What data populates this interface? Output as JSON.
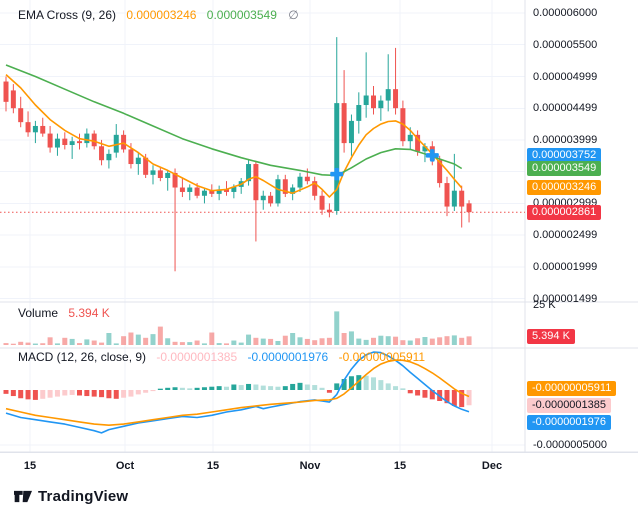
{
  "legend": {
    "ema": {
      "title": "EMA Cross (9, 26)",
      "ema9_value": "0.000003246",
      "ema26_value": "0.000003549",
      "icon": "∅"
    },
    "volume": {
      "title": "Volume",
      "value": "5.394 K"
    },
    "macd": {
      "title": "MACD (12, 26, close, 9)",
      "hist_value": "-0.0000001385",
      "macd_value": "-0.0000001976",
      "signal_value": "-0.00000005911"
    }
  },
  "watermark": {
    "brand": "TradingView"
  },
  "colors": {
    "up": "#26a69a",
    "down": "#ef5350",
    "ema_fast": "#ff9800",
    "ema_slow": "#4caf50",
    "macd_line": "#2196f3",
    "macd_signal": "#ff9800",
    "hist_pos": "#26a69a",
    "hist_pos_weak": "#b2dfdb",
    "hist_neg": "#ef5350",
    "hist_neg_weak": "#fccbcd",
    "badge_blue": "#2196f3",
    "badge_green": "#4caf50",
    "badge_orange": "#ff9800",
    "badge_red": "#f23645",
    "badge_pink": "#fccbcd",
    "grid": "#f0f3fa",
    "separator": "#e0e3eb",
    "text": "#131722",
    "muted": "#787b86",
    "dotted_price_line": "#ef5350",
    "marker_blue": "#2196f3"
  },
  "chart_data": [
    {
      "type": "candlestick",
      "pane": "price",
      "title": "EMA Cross (9, 26)",
      "unit": "1e-6",
      "x_ticks": [
        "15",
        "Oct",
        "15",
        "Nov",
        "15",
        "Dec"
      ],
      "y_ticks": [
        {
          "v": 6.0,
          "label": "0.000006000"
        },
        {
          "v": 5.5,
          "label": "0.000005500"
        },
        {
          "v": 4.999,
          "label": "0.000004999"
        },
        {
          "v": 4.499,
          "label": "0.000004499"
        },
        {
          "v": 3.999,
          "label": "0.000003999"
        },
        {
          "v": 2.999,
          "label": "0.000002999"
        },
        {
          "v": 2.499,
          "label": "0.000002499"
        },
        {
          "v": 1.999,
          "label": "0.000001999"
        },
        {
          "v": 1.499,
          "label": "0.000001499"
        }
      ],
      "axis_badges": [
        {
          "v": 3.752,
          "label": "0.000003752",
          "type": "blue"
        },
        {
          "v": 3.549,
          "label": "0.000003549",
          "type": "green"
        },
        {
          "v": 3.246,
          "label": "0.000003246",
          "type": "orange"
        },
        {
          "v": 2.861,
          "label": "0.000002861",
          "type": "red"
        }
      ],
      "last_price": 2.861,
      "last_price_label": "0.000002861",
      "ohlc": [
        [
          4.92,
          5.0,
          4.45,
          4.6
        ],
        [
          4.78,
          4.88,
          4.42,
          4.5
        ],
        [
          4.5,
          4.68,
          4.2,
          4.28
        ],
        [
          4.28,
          4.45,
          4.05,
          4.12
        ],
        [
          4.12,
          4.3,
          3.95,
          4.22
        ],
        [
          4.22,
          4.35,
          4.05,
          4.1
        ],
        [
          4.1,
          4.22,
          3.8,
          3.88
        ],
        [
          3.88,
          4.1,
          3.75,
          4.02
        ],
        [
          4.02,
          4.12,
          3.85,
          3.92
        ],
        [
          3.92,
          4.05,
          3.7,
          3.98
        ],
        [
          3.98,
          4.1,
          3.85,
          3.95
        ],
        [
          3.95,
          4.18,
          3.88,
          4.1
        ],
        [
          4.1,
          4.15,
          3.85,
          3.9
        ],
        [
          3.9,
          4.0,
          3.6,
          3.68
        ],
        [
          3.68,
          3.85,
          3.55,
          3.78
        ],
        [
          3.8,
          4.25,
          3.72,
          4.08
        ],
        [
          4.08,
          4.15,
          3.8,
          3.85
        ],
        [
          3.85,
          3.95,
          3.55,
          3.62
        ],
        [
          3.62,
          3.8,
          3.45,
          3.72
        ],
        [
          3.72,
          3.78,
          3.4,
          3.45
        ],
        [
          3.45,
          3.6,
          3.3,
          3.52
        ],
        [
          3.52,
          3.58,
          3.35,
          3.4
        ],
        [
          3.4,
          3.52,
          3.2,
          3.48
        ],
        [
          3.48,
          3.55,
          1.93,
          3.25
        ],
        [
          3.25,
          3.4,
          3.1,
          3.18
        ],
        [
          3.18,
          3.3,
          3.05,
          3.25
        ],
        [
          3.25,
          3.32,
          3.08,
          3.12
        ],
        [
          3.12,
          3.25,
          3.0,
          3.2
        ],
        [
          3.2,
          3.3,
          3.1,
          3.15
        ],
        [
          3.15,
          3.28,
          3.05,
          3.22
        ],
        [
          3.22,
          3.35,
          3.12,
          3.18
        ],
        [
          3.18,
          3.3,
          3.08,
          3.26
        ],
        [
          3.26,
          3.4,
          3.15,
          3.35
        ],
        [
          3.35,
          3.7,
          3.28,
          3.62
        ],
        [
          3.62,
          3.66,
          2.4,
          3.05
        ],
        [
          3.05,
          3.2,
          2.9,
          3.12
        ],
        [
          3.12,
          3.18,
          2.95,
          3.0
        ],
        [
          3.0,
          3.45,
          2.95,
          3.38
        ],
        [
          3.38,
          3.45,
          3.1,
          3.15
        ],
        [
          3.15,
          3.3,
          3.05,
          3.25
        ],
        [
          3.25,
          3.48,
          3.18,
          3.42
        ],
        [
          3.42,
          3.55,
          3.3,
          3.35
        ],
        [
          3.35,
          3.42,
          3.05,
          3.12
        ],
        [
          3.12,
          3.2,
          2.82,
          2.9
        ],
        [
          2.9,
          3.0,
          2.78,
          2.86
        ],
        [
          2.88,
          5.62,
          2.82,
          4.58
        ],
        [
          4.58,
          5.1,
          3.8,
          3.95
        ],
        [
          3.95,
          4.4,
          3.75,
          4.3
        ],
        [
          4.3,
          4.75,
          4.1,
          4.55
        ],
        [
          4.55,
          5.38,
          4.35,
          4.7
        ],
        [
          4.7,
          4.85,
          4.4,
          4.5
        ],
        [
          4.5,
          4.7,
          4.3,
          4.62
        ],
        [
          4.62,
          5.35,
          4.45,
          4.8
        ],
        [
          4.8,
          5.45,
          4.4,
          4.5
        ],
        [
          4.5,
          4.62,
          3.9,
          3.98
        ],
        [
          3.98,
          4.2,
          3.85,
          4.08
        ],
        [
          4.08,
          4.15,
          3.75,
          3.82
        ],
        [
          3.82,
          3.95,
          3.65,
          3.9
        ],
        [
          3.9,
          3.98,
          3.6,
          3.68
        ],
        [
          3.68,
          3.75,
          3.25,
          3.32
        ],
        [
          3.32,
          3.42,
          2.8,
          2.95
        ],
        [
          2.95,
          3.78,
          2.88,
          3.2
        ],
        [
          3.2,
          3.28,
          2.62,
          2.95
        ],
        [
          3.0,
          3.05,
          2.7,
          2.861
        ]
      ],
      "series": [
        {
          "name": "EMA 9",
          "color_key": "ema_fast",
          "points": [
            [
              0,
              5.03
            ],
            [
              2,
              4.82
            ],
            [
              4,
              4.55
            ],
            [
              6,
              4.32
            ],
            [
              8,
              4.15
            ],
            [
              10,
              4.02
            ],
            [
              12,
              3.98
            ],
            [
              14,
              3.9
            ],
            [
              16,
              3.95
            ],
            [
              18,
              3.8
            ],
            [
              20,
              3.62
            ],
            [
              22,
              3.52
            ],
            [
              24,
              3.4
            ],
            [
              26,
              3.28
            ],
            [
              28,
              3.2
            ],
            [
              30,
              3.22
            ],
            [
              32,
              3.3
            ],
            [
              33,
              3.38
            ],
            [
              34,
              3.42
            ],
            [
              35,
              3.36
            ],
            [
              37,
              3.22
            ],
            [
              39,
              3.16
            ],
            [
              41,
              3.26
            ],
            [
              42,
              3.32
            ],
            [
              43,
              3.22
            ],
            [
              44,
              3.1
            ],
            [
              45,
              3.22
            ],
            [
              46,
              3.5
            ],
            [
              47,
              3.72
            ],
            [
              48,
              3.92
            ],
            [
              49,
              4.08
            ],
            [
              50,
              4.18
            ],
            [
              51,
              4.25
            ],
            [
              52,
              4.29
            ],
            [
              53,
              4.3
            ],
            [
              54,
              4.25
            ],
            [
              55,
              4.15
            ],
            [
              56,
              4.02
            ],
            [
              57,
              3.9
            ],
            [
              58,
              3.78
            ],
            [
              59,
              3.65
            ],
            [
              60,
              3.52
            ],
            [
              61,
              3.38
            ],
            [
              62,
              3.246
            ]
          ]
        },
        {
          "name": "EMA 26",
          "color_key": "ema_slow",
          "points": [
            [
              0,
              5.18
            ],
            [
              4,
              5.0
            ],
            [
              8,
              4.8
            ],
            [
              12,
              4.6
            ],
            [
              16,
              4.42
            ],
            [
              20,
              4.22
            ],
            [
              24,
              4.02
            ],
            [
              28,
              3.86
            ],
            [
              32,
              3.72
            ],
            [
              36,
              3.6
            ],
            [
              40,
              3.52
            ],
            [
              43,
              3.45
            ],
            [
              45,
              3.44
            ],
            [
              47,
              3.56
            ],
            [
              49,
              3.7
            ],
            [
              51,
              3.8
            ],
            [
              53,
              3.86
            ],
            [
              55,
              3.85
            ],
            [
              57,
              3.78
            ],
            [
              59,
              3.7
            ],
            [
              61,
              3.62
            ],
            [
              62,
              3.549
            ]
          ]
        }
      ],
      "markers": [
        {
          "idx": 45,
          "v": 3.465,
          "shape": "cross",
          "color_key": "marker_blue"
        },
        {
          "idx": 58,
          "v": 3.76,
          "shape": "cross",
          "color_key": "marker_blue"
        }
      ]
    },
    {
      "type": "bar",
      "pane": "volume",
      "name": "Volume",
      "unit": "K",
      "y_max": 25,
      "y_max_label": "25 K",
      "last_value": 5.394,
      "last_label": "5.394 K",
      "values": [
        1.2,
        0.8,
        2.0,
        1.5,
        0.9,
        1.1,
        4.8,
        1.0,
        4.5,
        3.8,
        1.2,
        3.5,
        2.8,
        1.5,
        7.5,
        1.0,
        5.5,
        7.8,
        6.5,
        4.5,
        6.8,
        11.5,
        4.2,
        2.0,
        1.8,
        1.8,
        2.8,
        1.0,
        7.8,
        1.2,
        1.0,
        2.8,
        1.5,
        6.5,
        4.5,
        4.0,
        3.8,
        2.5,
        5.8,
        7.5,
        4.8,
        3.8,
        3.0,
        4.2,
        4.5,
        21.0,
        7.5,
        8.5,
        4.0,
        3.2,
        4.5,
        5.8,
        5.5,
        5.2,
        3.0,
        2.8,
        4.2,
        5.0,
        4.0,
        4.8,
        5.5,
        6.0,
        4.5,
        5.394
      ]
    },
    {
      "type": "macd",
      "pane": "macd",
      "title": "MACD (12, 26, close, 9)",
      "unit": "1e-7",
      "y_tick": {
        "v": -5.0,
        "label": "-0.0000005000"
      },
      "badges": [
        {
          "v": -0.5911,
          "label": "-0.00000005911",
          "type": "orange"
        },
        {
          "v": -1.385,
          "label": "-0.0000001385",
          "type": "pink"
        },
        {
          "v": -1.976,
          "label": "-0.0000001976",
          "type": "blue"
        }
      ],
      "hist": [
        -0.35,
        -0.55,
        -0.75,
        -0.85,
        -0.9,
        -0.8,
        -0.7,
        -0.6,
        -0.5,
        -0.45,
        -0.5,
        -0.55,
        -0.6,
        -0.65,
        -0.75,
        -0.8,
        -0.7,
        -0.6,
        -0.4,
        -0.25,
        -0.1,
        0.12,
        0.2,
        0.25,
        0.2,
        0.15,
        0.2,
        0.25,
        0.3,
        0.35,
        0.3,
        0.5,
        0.45,
        0.55,
        0.5,
        0.4,
        0.35,
        0.3,
        0.35,
        0.55,
        0.65,
        0.5,
        0.45,
        0.2,
        -0.25,
        0.6,
        1.0,
        1.25,
        1.35,
        1.3,
        1.15,
        0.9,
        0.6,
        0.35,
        0.15,
        -0.3,
        -0.5,
        -0.7,
        -0.85,
        -1.0,
        -1.2,
        -1.45,
        -1.55,
        -1.385
      ],
      "macd_line": [
        [
          0,
          -2.1
        ],
        [
          2,
          -2.5
        ],
        [
          4,
          -2.7
        ],
        [
          6,
          -2.9
        ],
        [
          8,
          -3.1
        ],
        [
          10,
          -3.4
        ],
        [
          12,
          -3.7
        ],
        [
          13,
          -3.9
        ],
        [
          14,
          -3.6
        ],
        [
          16,
          -3.3
        ],
        [
          18,
          -3.0
        ],
        [
          20,
          -2.8
        ],
        [
          22,
          -2.6
        ],
        [
          24,
          -2.4
        ],
        [
          26,
          -2.5
        ],
        [
          28,
          -2.3
        ],
        [
          30,
          -2.0
        ],
        [
          32,
          -1.8
        ],
        [
          34,
          -1.5
        ],
        [
          35,
          -1.7
        ],
        [
          36,
          -1.55
        ],
        [
          38,
          -1.3
        ],
        [
          40,
          -1.05
        ],
        [
          42,
          -0.9
        ],
        [
          43,
          -1.0
        ],
        [
          44,
          -1.1
        ],
        [
          45,
          -0.4
        ],
        [
          46,
          0.9
        ],
        [
          47,
          1.9
        ],
        [
          48,
          2.7
        ],
        [
          49,
          3.2
        ],
        [
          50,
          3.45
        ],
        [
          51,
          3.4
        ],
        [
          52,
          3.1
        ],
        [
          53,
          2.7
        ],
        [
          54,
          2.2
        ],
        [
          55,
          1.6
        ],
        [
          56,
          1.05
        ],
        [
          57,
          0.5
        ],
        [
          58,
          -0.05
        ],
        [
          59,
          -0.55
        ],
        [
          60,
          -1.05
        ],
        [
          61,
          -1.45
        ],
        [
          62,
          -1.75
        ],
        [
          63,
          -1.976
        ]
      ],
      "signal_line": [
        [
          0,
          -1.7
        ],
        [
          2,
          -2.0
        ],
        [
          4,
          -2.3
        ],
        [
          6,
          -2.5
        ],
        [
          8,
          -2.7
        ],
        [
          10,
          -2.9
        ],
        [
          12,
          -3.1
        ],
        [
          14,
          -3.2
        ],
        [
          16,
          -3.1
        ],
        [
          18,
          -2.9
        ],
        [
          20,
          -2.7
        ],
        [
          22,
          -2.5
        ],
        [
          24,
          -2.3
        ],
        [
          26,
          -2.2
        ],
        [
          28,
          -2.0
        ],
        [
          30,
          -1.8
        ],
        [
          32,
          -1.6
        ],
        [
          34,
          -1.45
        ],
        [
          36,
          -1.3
        ],
        [
          38,
          -1.2
        ],
        [
          40,
          -1.1
        ],
        [
          42,
          -0.95
        ],
        [
          44,
          -0.9
        ],
        [
          45,
          -0.75
        ],
        [
          46,
          -0.35
        ],
        [
          47,
          0.2
        ],
        [
          48,
          0.8
        ],
        [
          49,
          1.4
        ],
        [
          50,
          1.95
        ],
        [
          51,
          2.35
        ],
        [
          52,
          2.6
        ],
        [
          53,
          2.72
        ],
        [
          54,
          2.7
        ],
        [
          55,
          2.55
        ],
        [
          56,
          2.3
        ],
        [
          57,
          1.95
        ],
        [
          58,
          1.55
        ],
        [
          59,
          1.1
        ],
        [
          60,
          0.6
        ],
        [
          61,
          0.1
        ],
        [
          62,
          -0.3
        ],
        [
          63,
          -0.5911
        ]
      ]
    }
  ]
}
